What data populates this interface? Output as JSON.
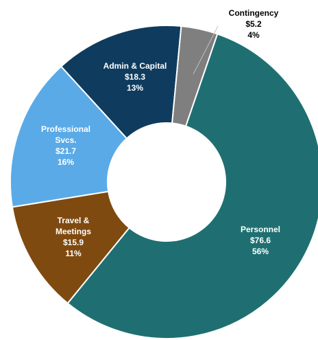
{
  "chart_data": {
    "type": "donut",
    "categories": [
      "Personnel",
      "Travel & Meetings",
      "Professional Svcs.",
      "Admin & Capital",
      "Contingency"
    ],
    "values": [
      76.6,
      15.9,
      21.7,
      18.3,
      5.2
    ],
    "value_labels": [
      "$76.6",
      "$15.9",
      "$21.7",
      "$18.3",
      "$5.2"
    ],
    "percent_labels": [
      "56%",
      "11%",
      "16%",
      "13%",
      "4%"
    ],
    "colors": [
      "#1f6f72",
      "#7f4a0f",
      "#5aaae8",
      "#0f3c5e",
      "#7f7f7f"
    ]
  }
}
